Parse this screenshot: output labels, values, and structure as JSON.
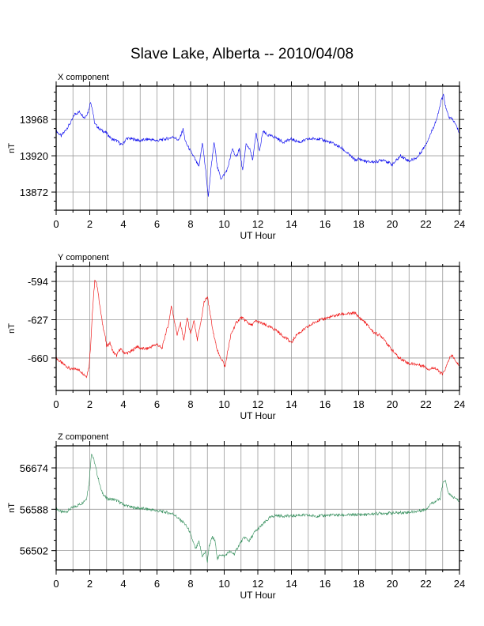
{
  "title": "Slave Lake, Alberta -- 2010/04/08",
  "chart_data": [
    {
      "type": "line",
      "panel_label": "X component",
      "ylabel": "nT",
      "xlabel": "UT Hour",
      "xlim": [
        0,
        24
      ],
      "ylim": [
        13848,
        14012
      ],
      "xticks": [
        0,
        2,
        4,
        6,
        8,
        10,
        12,
        14,
        16,
        18,
        20,
        22,
        24
      ],
      "yticks": [
        13872,
        13920,
        13968
      ],
      "grid": true,
      "color": "#0000ee",
      "series": [
        {
          "x": [
            0,
            0.3,
            0.6,
            0.9,
            1.1,
            1.4,
            1.7,
            1.9,
            2.05,
            2.15,
            2.3,
            2.6,
            3.0,
            3.3,
            3.6,
            3.9,
            4.2,
            4.6,
            5.0,
            5.5,
            6.0,
            6.5,
            7.0,
            7.3,
            7.55,
            7.7,
            7.9,
            8.2,
            8.5,
            8.7,
            8.9,
            9.05,
            9.2,
            9.4,
            9.6,
            9.8,
            10.0,
            10.2,
            10.5,
            10.7,
            10.9,
            11.1,
            11.3,
            11.5,
            11.7,
            11.9,
            12.1,
            12.3,
            12.6,
            13.0,
            13.5,
            14.0,
            14.5,
            15.0,
            15.5,
            16.0,
            16.5,
            17.0,
            17.5,
            17.8,
            18.0,
            18.5,
            19.0,
            19.5,
            20.0,
            20.5,
            21.0,
            21.5,
            22.0,
            22.4,
            22.7,
            22.9,
            23.05,
            23.2,
            23.4,
            23.6,
            23.8,
            24.0
          ],
          "y": [
            13953,
            13946,
            13955,
            13965,
            13975,
            13978,
            13970,
            13978,
            13992,
            13982,
            13962,
            13955,
            13950,
            13942,
            13940,
            13934,
            13943,
            13942,
            13940,
            13942,
            13940,
            13942,
            13945,
            13940,
            13955,
            13938,
            13930,
            13918,
            13905,
            13938,
            13900,
            13866,
            13900,
            13938,
            13905,
            13890,
            13895,
            13903,
            13930,
            13917,
            13930,
            13900,
            13935,
            13930,
            13915,
            13950,
            13925,
            13952,
            13947,
            13945,
            13938,
            13942,
            13938,
            13942,
            13943,
            13940,
            13936,
            13930,
            13920,
            13914,
            13916,
            13912,
            13912,
            13915,
            13908,
            13920,
            13913,
            13918,
            13935,
            13955,
            13972,
            13992,
            14000,
            13982,
            13970,
            13968,
            13960,
            13950
          ]
        }
      ]
    },
    {
      "type": "line",
      "panel_label": "Y component",
      "ylabel": "nT",
      "xlabel": "UT Hour",
      "xlim": [
        0,
        24
      ],
      "ylim": [
        -688,
        -581
      ],
      "xticks": [
        0,
        2,
        4,
        6,
        8,
        10,
        12,
        14,
        16,
        18,
        20,
        22,
        24
      ],
      "yticks": [
        -660,
        -627,
        -594
      ],
      "grid": true,
      "color": "#ee0000",
      "series": [
        {
          "x": [
            0,
            0.3,
            0.6,
            0.9,
            1.2,
            1.5,
            1.8,
            1.95,
            2.05,
            2.15,
            2.3,
            2.45,
            2.6,
            2.75,
            2.9,
            3.0,
            3.2,
            3.4,
            3.6,
            3.8,
            4.0,
            4.2,
            4.5,
            4.8,
            5.1,
            5.4,
            5.7,
            6.0,
            6.3,
            6.5,
            6.7,
            6.85,
            7.0,
            7.2,
            7.4,
            7.6,
            7.8,
            8.0,
            8.2,
            8.4,
            8.6,
            8.8,
            9.0,
            9.15,
            9.3,
            9.5,
            9.7,
            9.9,
            10.05,
            10.2,
            10.4,
            10.7,
            11.0,
            11.3,
            11.6,
            11.9,
            12.2,
            12.5,
            12.8,
            13.1,
            13.4,
            13.7,
            14.0,
            14.3,
            14.6,
            15.0,
            15.5,
            16.0,
            16.5,
            17.0,
            17.5,
            17.8,
            18.0,
            18.3,
            18.6,
            18.9,
            19.2,
            19.5,
            19.8,
            20.1,
            20.4,
            20.7,
            21.0,
            21.3,
            21.6,
            21.9,
            22.2,
            22.5,
            22.8,
            23.0,
            23.2,
            23.4,
            23.6,
            23.8,
            24.0
          ],
          "y": [
            -660,
            -664,
            -667,
            -670,
            -669,
            -672,
            -676,
            -668,
            -650,
            -622,
            -593,
            -598,
            -615,
            -630,
            -640,
            -650,
            -647,
            -655,
            -658,
            -652,
            -655,
            -656,
            -654,
            -650,
            -652,
            -652,
            -650,
            -648,
            -652,
            -640,
            -630,
            -615,
            -625,
            -640,
            -630,
            -645,
            -625,
            -640,
            -628,
            -645,
            -630,
            -612,
            -607,
            -620,
            -635,
            -648,
            -658,
            -662,
            -668,
            -655,
            -640,
            -630,
            -625,
            -628,
            -632,
            -628,
            -630,
            -632,
            -634,
            -636,
            -640,
            -643,
            -647,
            -640,
            -637,
            -633,
            -628,
            -626,
            -624,
            -622,
            -622,
            -621,
            -625,
            -628,
            -633,
            -638,
            -640,
            -643,
            -650,
            -655,
            -660,
            -662,
            -665,
            -665,
            -666,
            -667,
            -670,
            -668,
            -672,
            -674,
            -668,
            -660,
            -658,
            -664,
            -666
          ]
        }
      ]
    },
    {
      "type": "line",
      "panel_label": "Z component",
      "ylabel": "nT",
      "xlabel": "UT Hour",
      "xlim": [
        0,
        24
      ],
      "ylim": [
        56462,
        56720
      ],
      "xticks": [
        0,
        2,
        4,
        6,
        8,
        10,
        12,
        14,
        16,
        18,
        20,
        22,
        24
      ],
      "yticks": [
        56502,
        56588,
        56674
      ],
      "grid": true,
      "color": "#2e8b57",
      "series": [
        {
          "x": [
            0,
            0.3,
            0.6,
            0.9,
            1.2,
            1.5,
            1.8,
            1.95,
            2.1,
            2.25,
            2.45,
            2.7,
            3.0,
            3.5,
            4.0,
            4.5,
            5.0,
            5.5,
            6.0,
            6.5,
            7.0,
            7.3,
            7.6,
            7.9,
            8.1,
            8.3,
            8.5,
            8.7,
            8.9,
            9.0,
            9.1,
            9.3,
            9.45,
            9.6,
            9.8,
            10.0,
            10.3,
            10.6,
            10.9,
            11.2,
            11.5,
            11.8,
            12.1,
            12.4,
            12.7,
            13.0,
            13.5,
            14.0,
            14.5,
            15.0,
            15.5,
            16.0,
            16.5,
            17.0,
            17.5,
            18.0,
            18.5,
            19.0,
            19.5,
            20.0,
            20.5,
            21.0,
            21.5,
            22.0,
            22.3,
            22.6,
            22.85,
            23.0,
            23.15,
            23.3,
            23.5,
            23.7,
            24.0
          ],
          "y": [
            56590,
            56582,
            56583,
            56590,
            56595,
            56600,
            56610,
            56640,
            56705,
            56690,
            56660,
            56625,
            56610,
            56608,
            56598,
            56592,
            56590,
            56588,
            56585,
            56582,
            56578,
            56568,
            56560,
            56545,
            56525,
            56505,
            56520,
            56490,
            56500,
            56478,
            56512,
            56530,
            56522,
            56485,
            56495,
            56490,
            56500,
            56495,
            56515,
            56530,
            56522,
            56540,
            56550,
            56560,
            56570,
            56575,
            56574,
            56574,
            56576,
            56575,
            56574,
            56575,
            56576,
            56576,
            56576,
            56577,
            56577,
            56579,
            56580,
            56580,
            56581,
            56582,
            56584,
            56588,
            56600,
            56605,
            56610,
            56640,
            56650,
            56625,
            56615,
            56612,
            56605
          ]
        }
      ]
    }
  ]
}
